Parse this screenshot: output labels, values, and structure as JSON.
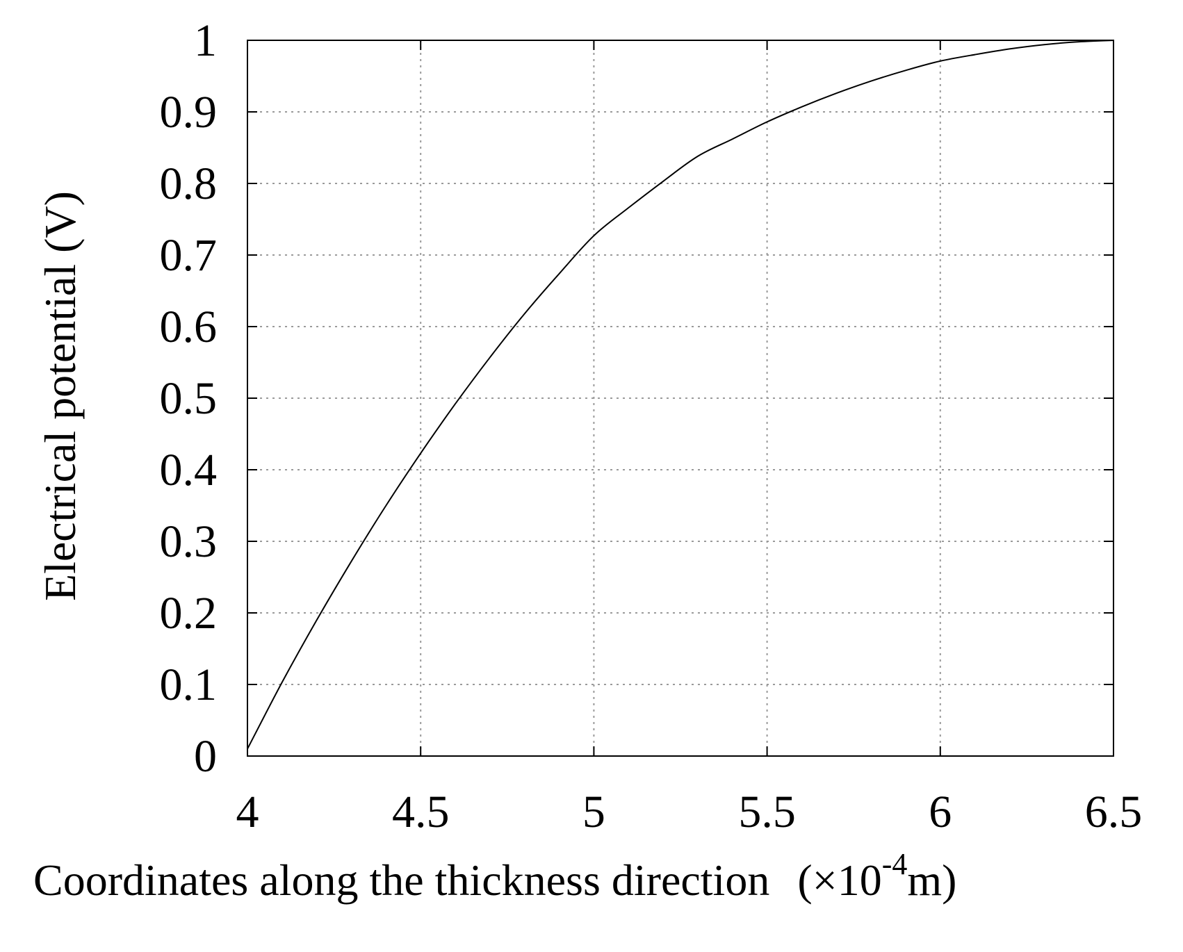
{
  "chart_data": {
    "type": "line",
    "title": "",
    "xlabel": "Coordinates along the thickness direction",
    "xlabel_unit_prefix": "(×10",
    "xlabel_unit_exp": "-4",
    "xlabel_unit_suffix": "m)",
    "ylabel": "Electrical potential  (V)",
    "xlim": [
      4,
      6.5
    ],
    "ylim": [
      0,
      1
    ],
    "x_ticks": [
      "4",
      "4.5",
      "5",
      "5.5",
      "6",
      "6.5"
    ],
    "y_ticks": [
      "0",
      "0.1",
      "0.2",
      "0.3",
      "0.4",
      "0.5",
      "0.6",
      "0.7",
      "0.8",
      "0.9",
      "1"
    ],
    "grid": true,
    "series": [
      {
        "color": "#000000",
        "x": [
          4.0,
          4.1,
          4.2,
          4.3,
          4.4,
          4.5,
          4.6,
          4.7,
          4.8,
          4.9,
          5.0,
          5.1,
          5.2,
          5.3,
          5.4,
          5.5,
          5.6,
          5.7,
          5.8,
          5.9,
          6.0,
          6.1,
          6.2,
          6.3,
          6.4,
          6.5
        ],
        "y": [
          0.01,
          0.103,
          0.19,
          0.272,
          0.35,
          0.423,
          0.492,
          0.557,
          0.618,
          0.674,
          0.727,
          0.766,
          0.803,
          0.838,
          0.862,
          0.886,
          0.907,
          0.926,
          0.943,
          0.958,
          0.971,
          0.98,
          0.988,
          0.994,
          0.998,
          1.0
        ]
      }
    ]
  }
}
